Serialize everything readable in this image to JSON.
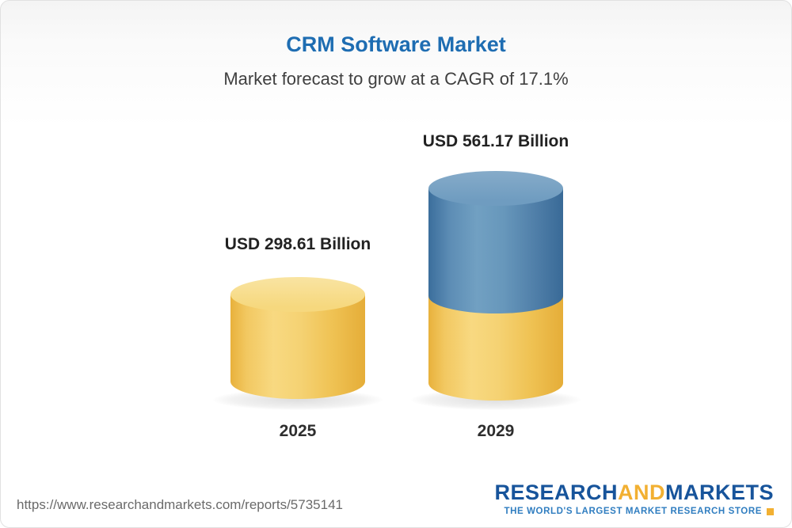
{
  "header": {
    "title": "CRM Software Market",
    "subtitle": "Market forecast to grow at a CAGR of 17.1%"
  },
  "chart_data": {
    "type": "bar",
    "style": "3d-cylinder, 2029 bar stacked: yellow base equal to 2025 value plus blue growth segment",
    "categories": [
      "2025",
      "2029"
    ],
    "values": [
      298.61,
      561.17
    ],
    "value_labels": [
      "USD 298.61 Billion",
      "USD 561.17 Billion"
    ],
    "unit": "USD Billion",
    "title": "CRM Software Market",
    "subtitle": "Market forecast to grow at a CAGR of 17.1%",
    "cagr": "17.1%",
    "legend_position": "none",
    "grid": false,
    "colors": {
      "bar_yellow": "#f0c75e",
      "bar_blue": "#4d7fa9",
      "title_blue": "#1e6db2"
    }
  },
  "footer": {
    "url": "https://www.researchandmarkets.com/reports/5735141",
    "logo": {
      "part1": "RESEARCH",
      "part2": "AND",
      "part3": "MARKETS",
      "tagline": "THE WORLD'S LARGEST MARKET RESEARCH STORE"
    }
  }
}
